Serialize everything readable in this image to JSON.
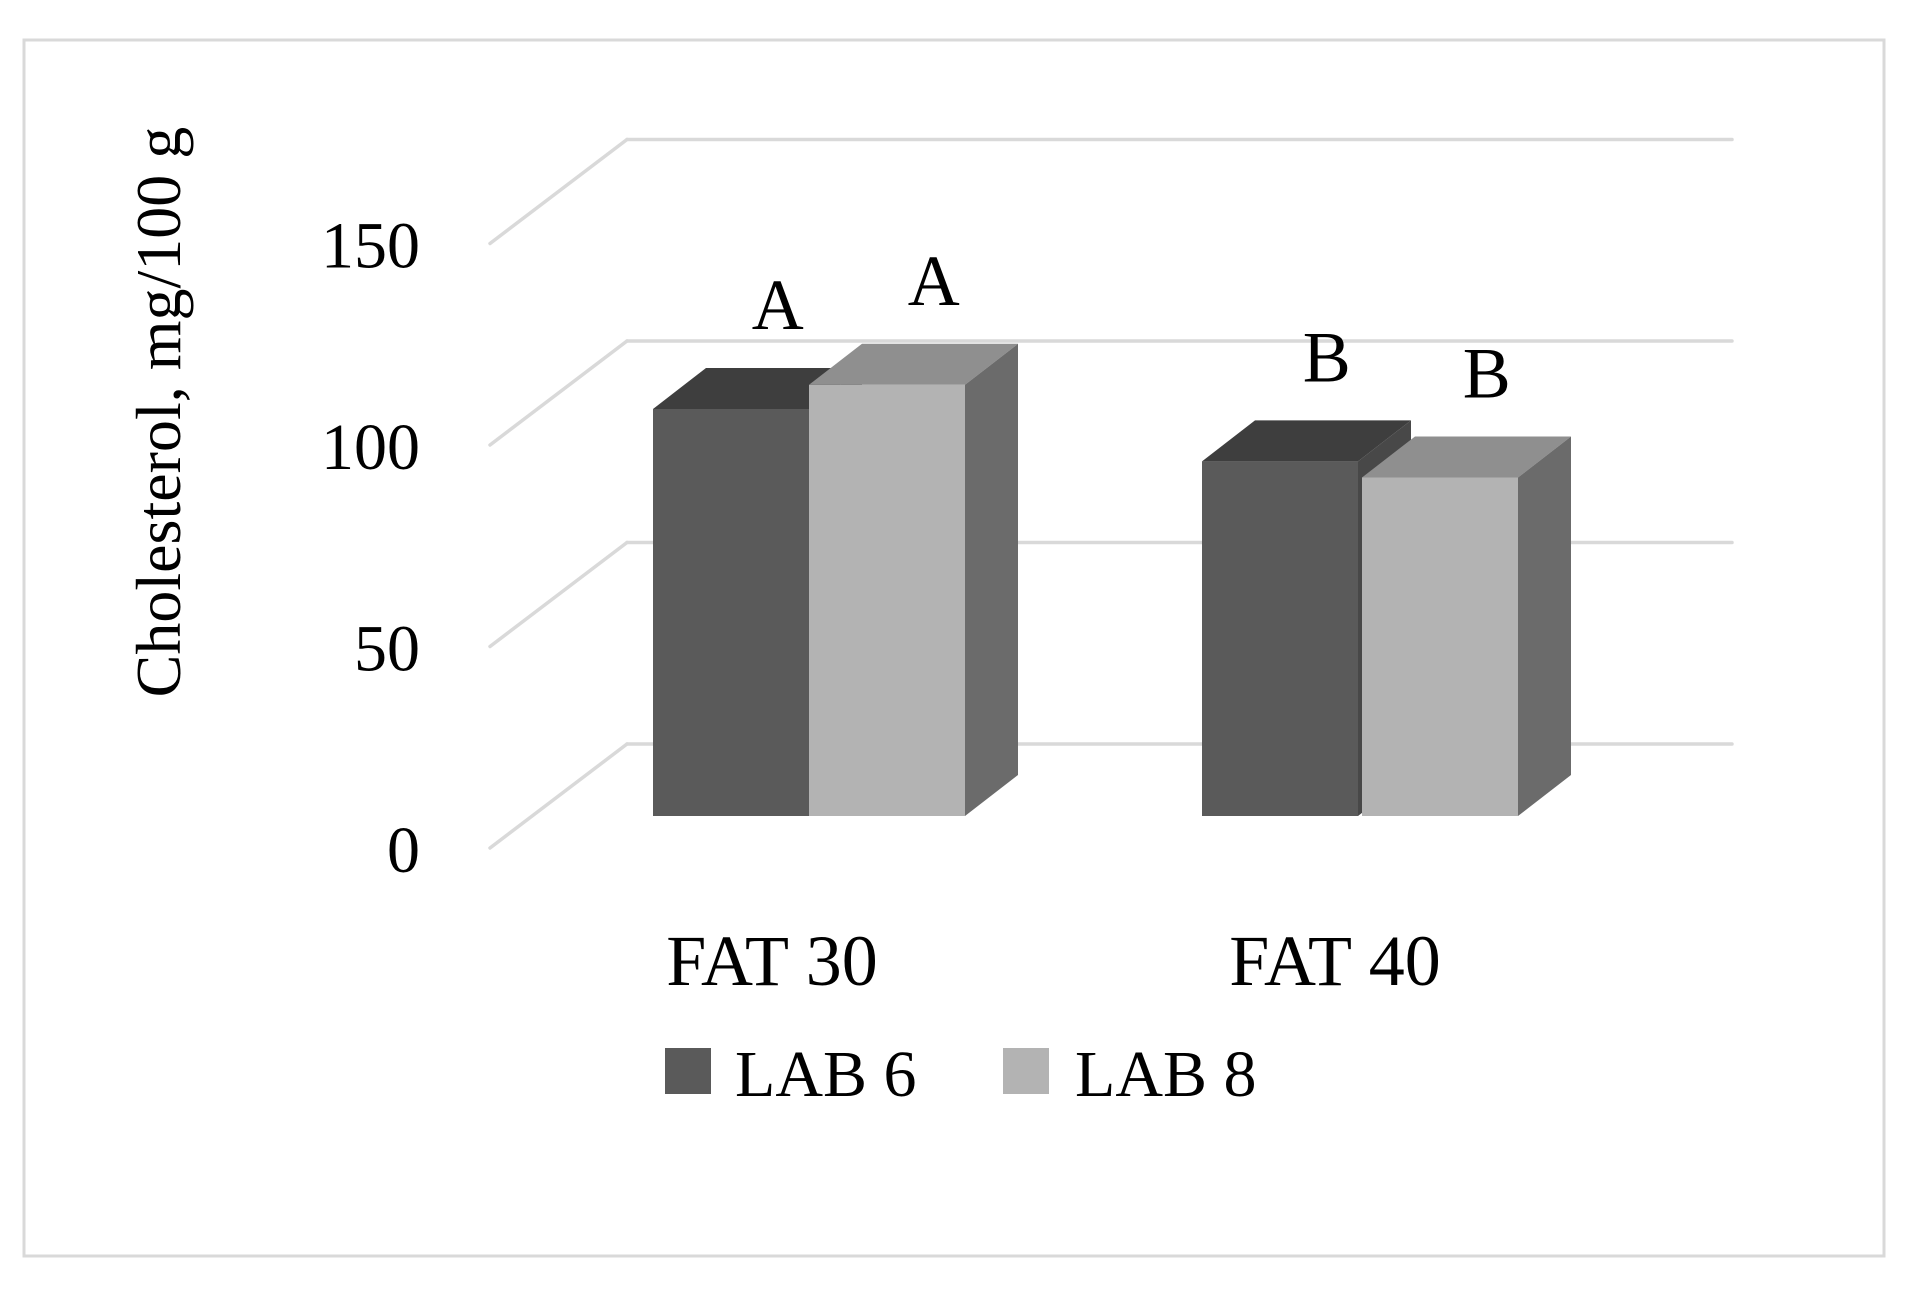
{
  "chart_data": {
    "type": "bar",
    "projection": "3d-column",
    "title": "",
    "ylabel": "Cholesterol, mg/100 g",
    "xlabel": "",
    "categories": [
      "FAT 30",
      "FAT 40"
    ],
    "series": [
      {
        "name": "LAB 6",
        "values": [
          101,
          88
        ],
        "color_front": "#5A5A5A",
        "color_top": "#3E3E3E",
        "color_side": "#484848"
      },
      {
        "name": "LAB 8",
        "values": [
          107,
          84
        ],
        "color_front": "#B3B3B3",
        "color_top": "#8F8F8F",
        "color_side": "#6B6B6B"
      }
    ],
    "significance_letters": [
      [
        "A",
        "A"
      ],
      [
        "B",
        "B"
      ]
    ],
    "yticks": [
      0,
      50,
      100,
      150
    ],
    "ylim": [
      0,
      150
    ],
    "grid": true,
    "legend_position": "bottom",
    "colors": {
      "gridline": "#D9D9D9",
      "frame": "#D9D9D9",
      "background": "#FFFFFF",
      "text": "#000000"
    }
  }
}
